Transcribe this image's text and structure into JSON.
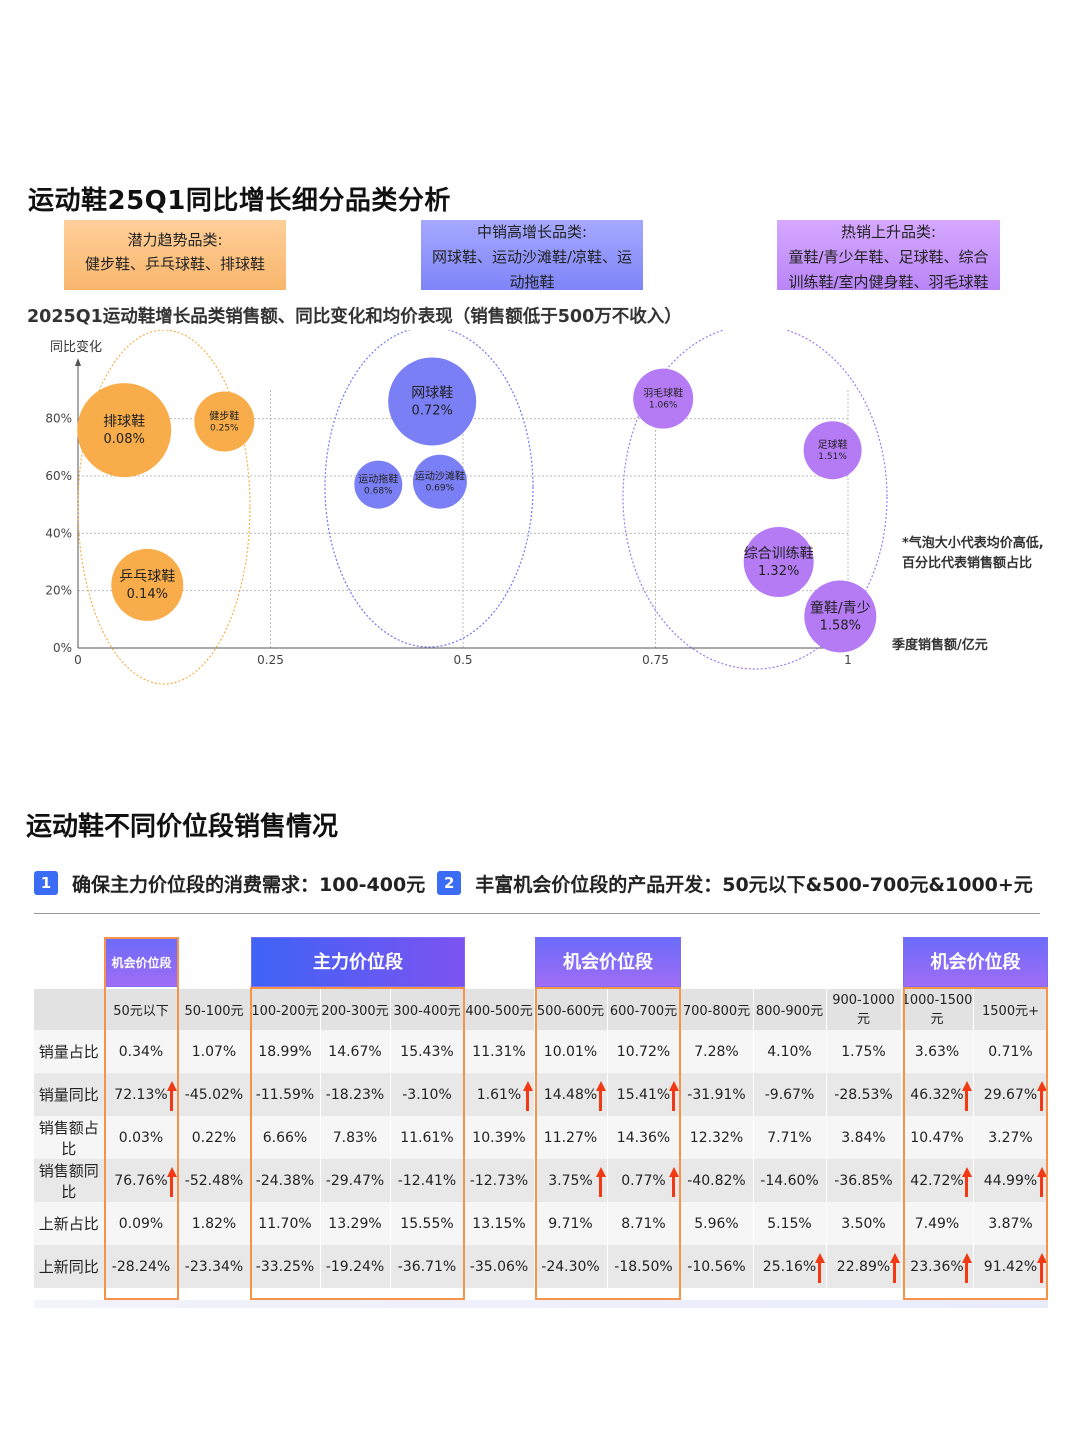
{
  "section1": {
    "title": "运动鞋25Q1同比增长细分品类分析",
    "categories": [
      {
        "heading": "潜力趋势品类:",
        "body": "健步鞋、乒乓球鞋、排球鞋"
      },
      {
        "heading": "中销高增长品类:",
        "body": "网球鞋、运动沙滩鞋/凉鞋、运动拖鞋"
      },
      {
        "heading": "热销上升品类:",
        "body": "童鞋/青少年鞋、足球鞋、综合训练鞋/室内健身鞋、羽毛球鞋"
      }
    ],
    "subtitle": "2025Q1运动鞋增长品类销售额、同比变化和均价表现（销售额低于500万不收入）",
    "note_line1": "*气泡大小代表均价高低,",
    "note_line2": "百分比代表销售额占比"
  },
  "colors": {
    "orange": "#f8b04e",
    "blue": "#7b7ff6",
    "purple": "#b57bf5",
    "arrow_red": "#f13a13",
    "frame_orange": "#f5934a",
    "badge_blue": "#3b6cf6"
  },
  "chart_data": {
    "type": "scatter",
    "title": "2025Q1运动鞋增长品类销售额、同比变化和均价表现（销售额低于500万不收入）",
    "xlabel": "季度销售额/亿元",
    "ylabel": "同比变化",
    "xlim": [
      0,
      1
    ],
    "ylim": [
      0,
      0.9
    ],
    "x_ticks": [
      "0",
      "0.25",
      "0.5",
      "0.75",
      "1"
    ],
    "y_ticks": [
      "0%",
      "20%",
      "40%",
      "60%",
      "80%"
    ],
    "grid": true,
    "series": [
      {
        "name": "潜力趋势品类",
        "color": "orange",
        "points": [
          {
            "label": "排球鞋",
            "share": "0.08%",
            "x": 0.06,
            "y": 0.76
          },
          {
            "label": "健步鞋",
            "share": "0.25%",
            "x": 0.19,
            "y": 0.79
          },
          {
            "label": "乒乓球鞋",
            "share": "0.14%",
            "x": 0.09,
            "y": 0.22
          }
        ]
      },
      {
        "name": "中销高增长品类",
        "color": "blue",
        "points": [
          {
            "label": "网球鞋",
            "share": "0.72%",
            "x": 0.46,
            "y": 0.86
          },
          {
            "label": "运动拖鞋",
            "share": "0.68%",
            "x": 0.39,
            "y": 0.57
          },
          {
            "label": "运动沙滩鞋/凉鞋",
            "share": "0.69%",
            "x": 0.47,
            "y": 0.58
          }
        ]
      },
      {
        "name": "热销上升品类",
        "color": "purple",
        "points": [
          {
            "label": "羽毛球鞋",
            "share": "1.06%",
            "x": 0.76,
            "y": 0.87
          },
          {
            "label": "足球鞋",
            "share": "1.51%",
            "x": 0.98,
            "y": 0.69
          },
          {
            "label": "综合训练鞋/室内健身鞋",
            "share": "1.32%",
            "x": 0.91,
            "y": 0.3
          },
          {
            "label": "童鞋/青少年鞋",
            "share": "1.58%",
            "x": 0.99,
            "y": 0.11
          }
        ]
      }
    ]
  },
  "section2": {
    "title": "运动鞋不同价位段销售情况",
    "point1_num": "1",
    "point1_text": "确保主力价位段的消费需求：100-400元",
    "point2_num": "2",
    "point2_text": "丰富机会价位段的产品开发：50元以下&500-700元&1000+元",
    "tags": {
      "opp1": "机会价位段",
      "main": "主力价位段",
      "opp2": "机会价位段",
      "opp3": "机会价位段"
    },
    "price_bands": [
      "50元以下",
      "50-100元",
      "100-200元",
      "200-300元",
      "300-400元",
      "400-500元",
      "500-600元",
      "600-700元",
      "700-800元",
      "800-900元",
      "900-1000元",
      "1000-1500元",
      "1500元+"
    ],
    "rows": [
      {
        "label": "销量占比",
        "values": [
          "0.34%",
          "1.07%",
          "18.99%",
          "14.67%",
          "15.43%",
          "11.31%",
          "10.01%",
          "10.72%",
          "7.28%",
          "4.10%",
          "1.75%",
          "3.63%",
          "0.71%"
        ],
        "up": []
      },
      {
        "label": "销量同比",
        "values": [
          "72.13%",
          "-45.02%",
          "-11.59%",
          "-18.23%",
          "-3.10%",
          "1.61%",
          "14.48%",
          "15.41%",
          "-31.91%",
          "-9.67%",
          "-28.53%",
          "46.32%",
          "29.67%"
        ],
        "up": [
          0,
          5,
          6,
          7,
          11,
          12
        ]
      },
      {
        "label": "销售额占比",
        "values": [
          "0.03%",
          "0.22%",
          "6.66%",
          "7.83%",
          "11.61%",
          "10.39%",
          "11.27%",
          "14.36%",
          "12.32%",
          "7.71%",
          "3.84%",
          "10.47%",
          "3.27%"
        ],
        "up": []
      },
      {
        "label": "销售额同比",
        "values": [
          "76.76%",
          "-52.48%",
          "-24.38%",
          "-29.47%",
          "-12.41%",
          "-12.73%",
          "3.75%",
          "0.77%",
          "-40.82%",
          "-14.60%",
          "-36.85%",
          "42.72%",
          "44.99%"
        ],
        "up": [
          0,
          6,
          7,
          11,
          12
        ]
      },
      {
        "label": "上新占比",
        "values": [
          "0.09%",
          "1.82%",
          "11.70%",
          "13.29%",
          "15.55%",
          "13.15%",
          "9.71%",
          "8.71%",
          "5.96%",
          "5.15%",
          "3.50%",
          "7.49%",
          "3.87%"
        ],
        "up": []
      },
      {
        "label": "上新同比",
        "values": [
          "-28.24%",
          "-23.34%",
          "-33.25%",
          "-19.24%",
          "-36.71%",
          "-35.06%",
          "-24.30%",
          "-18.50%",
          "-10.56%",
          "25.16%",
          "22.89%",
          "23.36%",
          "91.42%"
        ],
        "up": [
          9,
          10,
          11,
          12
        ]
      }
    ]
  }
}
